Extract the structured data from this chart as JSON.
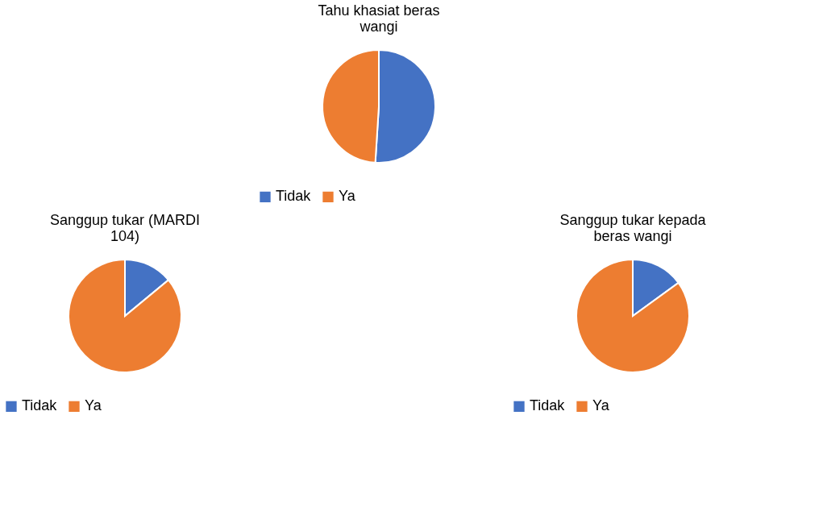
{
  "chart_data": [
    {
      "type": "pie",
      "title": "Tahu khasiat beras wangi",
      "categories": [
        "Tidak",
        "Ya"
      ],
      "values": [
        51,
        49
      ],
      "colors": [
        "#4472c4",
        "#ed7d31"
      ],
      "legend": "bottom"
    },
    {
      "type": "pie",
      "title": "Sanggup tukar (MARDI 104)",
      "categories": [
        "Tidak",
        "Ya"
      ],
      "values": [
        14,
        86
      ],
      "colors": [
        "#4472c4",
        "#ed7d31"
      ],
      "legend": "bottom"
    },
    {
      "type": "pie",
      "title": "Sanggup tukar kepada beras wangi",
      "categories": [
        "Tidak",
        "Ya"
      ],
      "values": [
        15,
        85
      ],
      "colors": [
        "#4472c4",
        "#ed7d31"
      ],
      "legend": "bottom"
    }
  ]
}
